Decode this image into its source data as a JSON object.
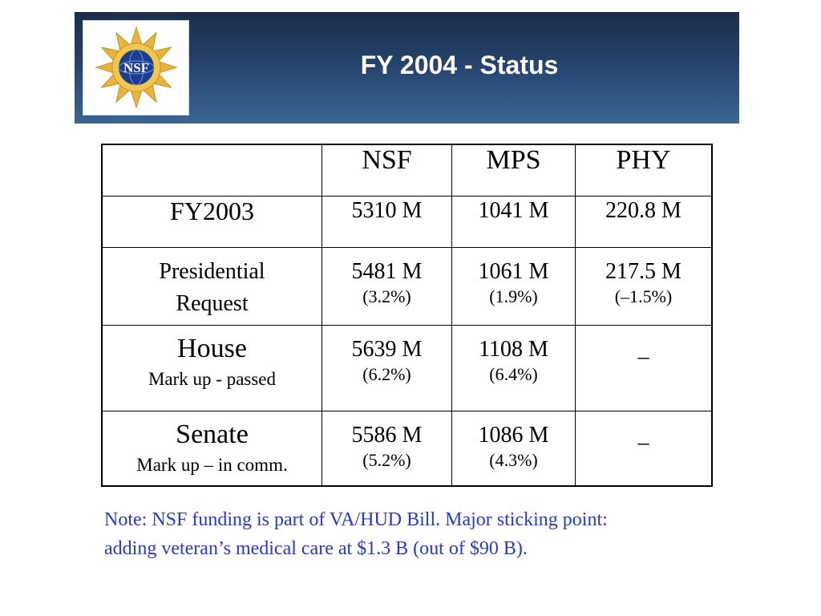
{
  "header": {
    "title": "FY 2004 - Status",
    "logo_text": "NSF"
  },
  "table": {
    "columns": [
      "",
      "NSF",
      "MPS",
      "PHY"
    ],
    "rows": [
      {
        "label": "FY2003",
        "sublabel": "",
        "cells": [
          {
            "value": "5310 M",
            "pct": ""
          },
          {
            "value": "1041 M",
            "pct": ""
          },
          {
            "value": "220.8 M",
            "pct": ""
          }
        ]
      },
      {
        "label_line1": "Presidential",
        "label_line2": "Request",
        "cells": [
          {
            "value": "5481 M",
            "pct": "(3.2%)"
          },
          {
            "value": "1061 M",
            "pct": "(1.9%)"
          },
          {
            "value": "217.5 M",
            "pct": "(–1.5%)"
          }
        ]
      },
      {
        "label": "House",
        "sublabel": "Mark up - passed",
        "cells": [
          {
            "value": "5639 M",
            "pct": "(6.2%)"
          },
          {
            "value": "1108 M",
            "pct": "(6.4%)"
          },
          {
            "value": "_",
            "pct": ""
          }
        ]
      },
      {
        "label": "Senate",
        "sublabel": "Mark up – in comm.",
        "cells": [
          {
            "value": "5586 M",
            "pct": "(5.2%)"
          },
          {
            "value": "1086 M",
            "pct": "(4.3%)"
          },
          {
            "value": "_",
            "pct": ""
          }
        ]
      }
    ]
  },
  "note": {
    "line1": "Note: NSF funding is part of VA/HUD Bill. Major sticking point:",
    "line2": "adding veteran’s medical care at $1.3 B (out of $90 B)."
  },
  "colors": {
    "header_dark": "#1b2d4a",
    "header_light": "#3a6694",
    "note_text": "#2a37d6",
    "logo_gold": "#e6b53a",
    "logo_blue": "#1d3d8f"
  }
}
